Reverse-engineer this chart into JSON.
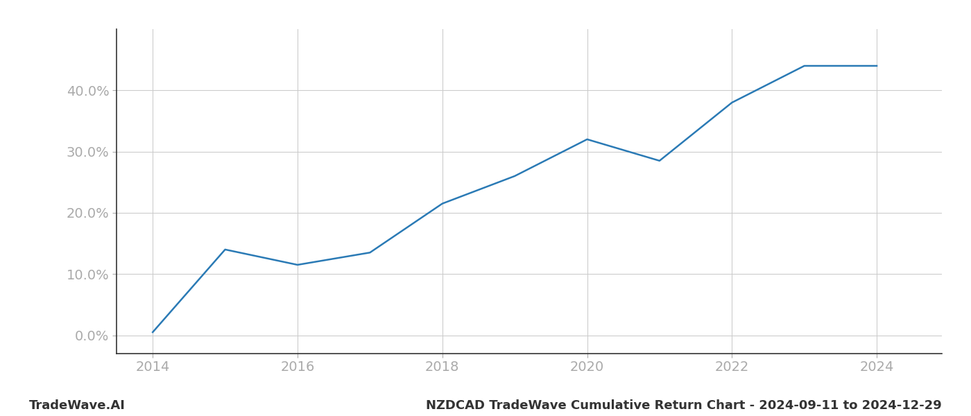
{
  "x_years": [
    2014,
    2015,
    2016,
    2017,
    2018,
    2019,
    2020,
    2021,
    2022,
    2023,
    2024
  ],
  "y_values": [
    0.5,
    14.0,
    11.5,
    13.5,
    21.5,
    26.0,
    32.0,
    28.5,
    38.0,
    44.0,
    44.0
  ],
  "line_color": "#2a7ab5",
  "line_width": 1.8,
  "title": "NZDCAD TradeWave Cumulative Return Chart - 2024-09-11 to 2024-12-29",
  "ylabel": "",
  "xlabel": "",
  "xlim": [
    2013.5,
    2024.9
  ],
  "ylim": [
    -3,
    50
  ],
  "yticks": [
    0.0,
    10.0,
    20.0,
    30.0,
    40.0
  ],
  "ytick_labels": [
    "0.0%",
    "10.0%",
    "20.0%",
    "30.0%",
    "40.0%"
  ],
  "xticks": [
    2014,
    2016,
    2018,
    2020,
    2022,
    2024
  ],
  "xtick_labels": [
    "2014",
    "2016",
    "2018",
    "2020",
    "2022",
    "2024"
  ],
  "watermark_text": "TradeWave.AI",
  "background_color": "#ffffff",
  "grid_color": "#cccccc",
  "left_spine_color": "#333333",
  "bottom_spine_color": "#333333",
  "tick_color": "#aaaaaa",
  "title_color": "#333333",
  "watermark_color": "#333333",
  "title_fontsize": 13,
  "tick_fontsize": 14,
  "watermark_fontsize": 13
}
